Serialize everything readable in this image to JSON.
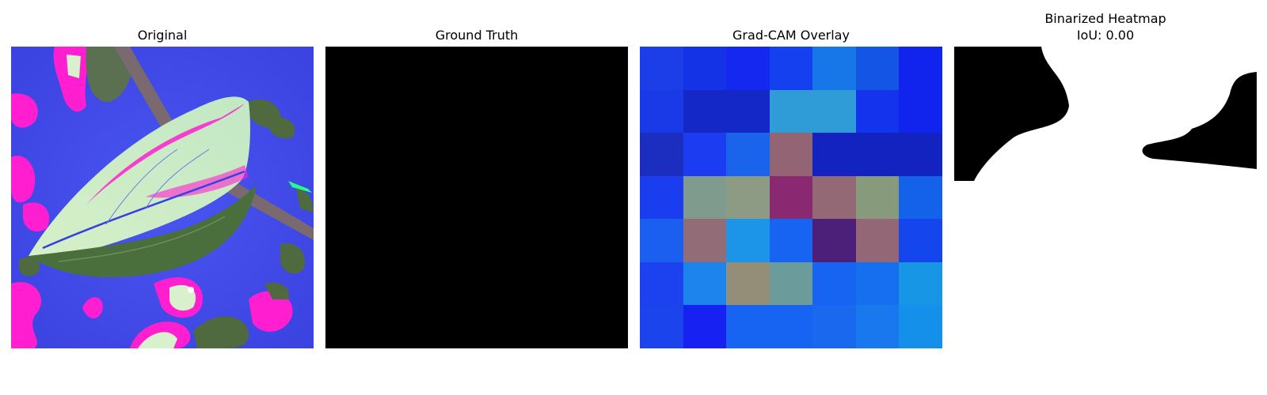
{
  "panels": [
    {
      "title": "Original"
    },
    {
      "title": "Ground Truth"
    },
    {
      "title": "Grad-CAM Overlay"
    },
    {
      "title": "Binarized Heatmap\nIoU: 0.00"
    }
  ],
  "gradcam": {
    "grid_size": 7,
    "colors": [
      [
        "#1c3ee8",
        "#1433e6",
        "#1528ef",
        "#1440f0",
        "#1877e8",
        "#1455e6",
        "#1124ee"
      ],
      [
        "#1a3ae8",
        "#1428c8",
        "#1428c8",
        "#2f9cd8",
        "#2f9cd8",
        "#1333ec",
        "#1124ee"
      ],
      [
        "#1b2ec0",
        "#1c3cf2",
        "#1a64ec",
        "#936473",
        "#1323bf",
        "#1323bf",
        "#1323bf"
      ],
      [
        "#1b3df0",
        "#7f9b8e",
        "#8d9a84",
        "#8b2872",
        "#926975",
        "#879b7c",
        "#1562ea"
      ],
      [
        "#1a5ff0",
        "#926c76",
        "#1c95e8",
        "#1764f2",
        "#4c1f78",
        "#936775",
        "#1545ec"
      ],
      [
        "#1b42ee",
        "#1d84ee",
        "#948d77",
        "#6b9b9a",
        "#1763f2",
        "#156fee",
        "#1896e6"
      ],
      [
        "#1b44ec",
        "#1722f2",
        "#1763f2",
        "#1763f2",
        "#1a68ee",
        "#1978ee",
        "#148fea"
      ]
    ]
  },
  "colors": {
    "original_background": "#3f4ae8",
    "leaf_light": "#c8ecc0",
    "leaf_dark": "#4a6e3c",
    "magenta": "#ff1fd0",
    "ground_truth": "#000000",
    "binarized_fg": "#000000",
    "binarized_bg": "#ffffff"
  }
}
